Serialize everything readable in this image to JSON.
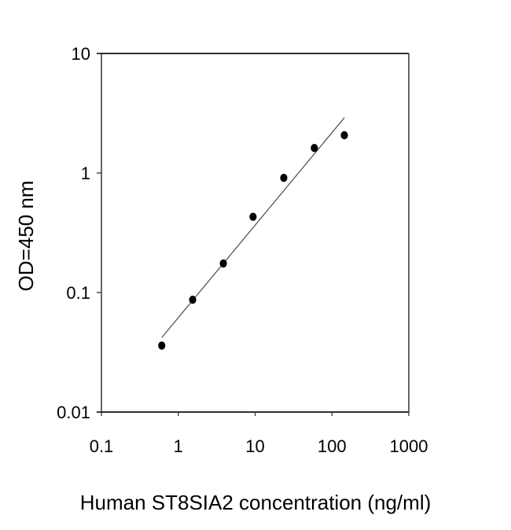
{
  "chart_data": {
    "type": "scatter",
    "title": "",
    "xlabel": "Human ST8SIA2 concentration (ng/ml)",
    "ylabel": "OD=450 nm",
    "xscale": "log",
    "yscale": "log",
    "xlim": [
      0.1,
      1000
    ],
    "ylim": [
      0.01,
      10
    ],
    "x_ticks": [
      "0.1",
      "1",
      "10",
      "100",
      "1000"
    ],
    "y_ticks": [
      "0.01",
      "0.1",
      "1",
      "10"
    ],
    "grid": false,
    "legend": null,
    "series": [
      {
        "name": "Standard points",
        "marker": "filled-circle",
        "color": "#000000",
        "x": [
          0.61,
          1.54,
          3.86,
          9.4,
          23.6,
          59,
          145
        ],
        "y": [
          0.036,
          0.087,
          0.175,
          0.43,
          0.91,
          1.62,
          2.07
        ]
      },
      {
        "name": "Fit line",
        "style": "line",
        "color": "#555555",
        "x": [
          0.61,
          145
        ],
        "y": [
          0.042,
          2.9
        ]
      }
    ]
  }
}
